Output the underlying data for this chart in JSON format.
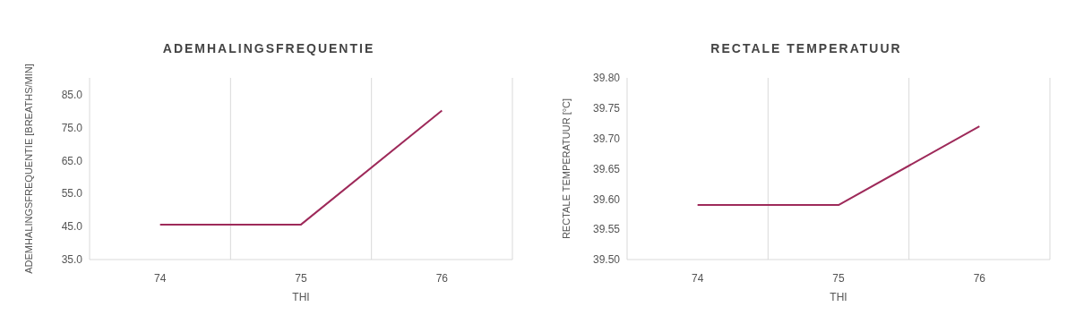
{
  "chart_data": [
    {
      "type": "line",
      "title": "ADEMHALINGSFREQUENTIE",
      "xlabel": "THI",
      "ylabel": "ADEMHALINGSFREQUENTIE   [BREATHS/MIN]",
      "categories": [
        "74",
        "75",
        "76"
      ],
      "values": [
        45.6,
        45.6,
        80.1
      ],
      "color": "#9e2a5a",
      "ylim": [
        35,
        90
      ],
      "yticks": [
        {
          "value": 35,
          "label": "35.0"
        },
        {
          "value": 45,
          "label": "45.0"
        },
        {
          "value": 55,
          "label": "55.0"
        },
        {
          "value": 65,
          "label": "65.0"
        },
        {
          "value": 75,
          "label": "75.0"
        },
        {
          "value": 85,
          "label": "85.0"
        }
      ],
      "grid": "x"
    },
    {
      "type": "line",
      "title": "RECTALE TEMPERATUUR",
      "xlabel": "THI",
      "ylabel": "RECTALE TEMPERATUUR [°C]",
      "categories": [
        "74",
        "75",
        "76"
      ],
      "values": [
        39.59,
        39.59,
        39.72
      ],
      "color": "#9e2a5a",
      "ylim": [
        39.5,
        39.8
      ],
      "yticks": [
        {
          "value": 39.5,
          "label": "39.50"
        },
        {
          "value": 39.55,
          "label": "39.55"
        },
        {
          "value": 39.6,
          "label": "39.60"
        },
        {
          "value": 39.65,
          "label": "39.65"
        },
        {
          "value": 39.7,
          "label": "39.70"
        },
        {
          "value": 39.75,
          "label": "39.75"
        },
        {
          "value": 39.8,
          "label": "39.80"
        }
      ],
      "grid": "x"
    }
  ]
}
